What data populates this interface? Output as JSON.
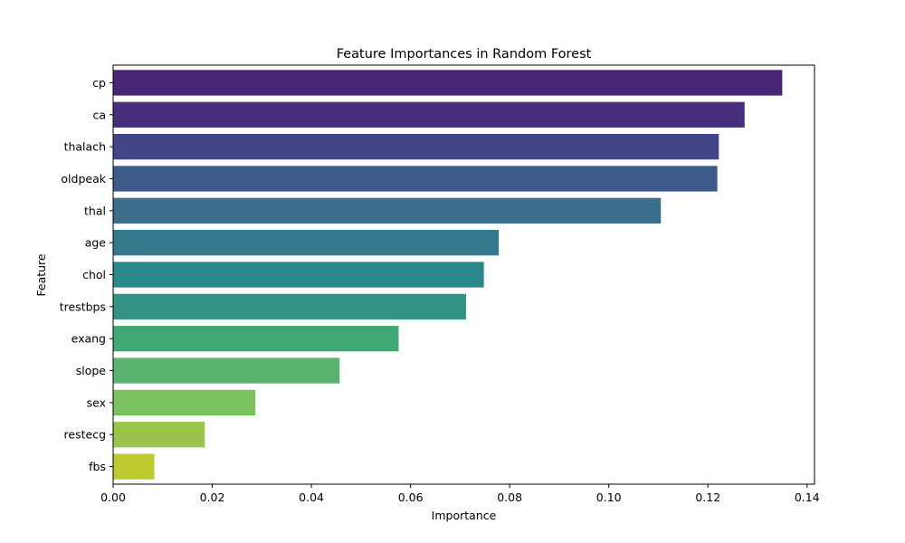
{
  "chart_data": {
    "type": "bar",
    "orientation": "horizontal",
    "title": "Feature Importances in Random Forest",
    "xlabel": "Importance",
    "ylabel": "Feature",
    "xlim": [
      0,
      0.1415
    ],
    "xticks": [
      0.0,
      0.02,
      0.04,
      0.06,
      0.08,
      0.1,
      0.12,
      0.14
    ],
    "xtick_labels": [
      "0.00",
      "0.02",
      "0.04",
      "0.06",
      "0.08",
      "0.10",
      "0.12",
      "0.14"
    ],
    "grid": false,
    "categories": [
      "cp",
      "ca",
      "thalach",
      "oldpeak",
      "thal",
      "age",
      "chol",
      "trestbps",
      "exang",
      "slope",
      "sex",
      "restecg",
      "fbs"
    ],
    "values": [
      0.135,
      0.1274,
      0.1222,
      0.1219,
      0.1105,
      0.0778,
      0.0748,
      0.0712,
      0.0576,
      0.0457,
      0.0287,
      0.0185,
      0.0083
    ],
    "colors": [
      "#482475",
      "#472f7d",
      "#414487",
      "#3d5a8a",
      "#3a6e8a",
      "#33778a",
      "#2a8a8b",
      "#339485",
      "#3fa875",
      "#5bb370",
      "#7bc15f",
      "#9ac54a",
      "#bdca2f"
    ]
  }
}
